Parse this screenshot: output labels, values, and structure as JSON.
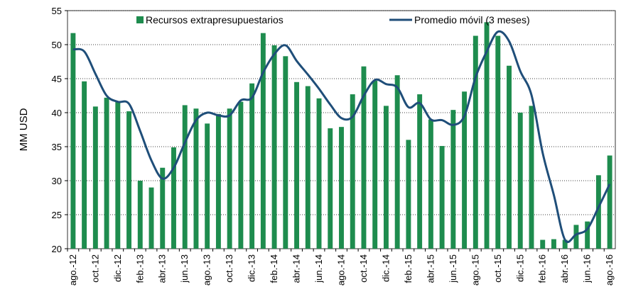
{
  "chart_data": {
    "type": "bar-line",
    "y_label": "MM USD",
    "categories": [
      "ago.-12",
      null,
      "oct.-12",
      null,
      "dic.-12",
      null,
      "feb.-13",
      null,
      "abr.-13",
      null,
      "jun.-13",
      null,
      "ago.-13",
      null,
      "oct.-13",
      null,
      "dic.-13",
      null,
      "feb.-14",
      null,
      "abr.-14",
      null,
      "jun.-14",
      null,
      "ago.-14",
      null,
      "oct.-14",
      null,
      "dic.-14",
      null,
      "feb.-15",
      null,
      "abr.-15",
      null,
      "jun.-15",
      null,
      "ago.-15",
      null,
      "oct.-15",
      null,
      "dic.-15",
      null,
      "feb.-16",
      null,
      "abr.-16",
      null,
      "jun.-16",
      null,
      "ago.-16"
    ],
    "series": [
      {
        "name": "Recursos extrapresupuestarios",
        "kind": "bar",
        "color": "#1e8c4e",
        "values": [
          51.7,
          44.6,
          40.9,
          42.2,
          41.6,
          40.2,
          30.0,
          29.0,
          31.9,
          34.9,
          41.1,
          40.6,
          38.4,
          39.8,
          40.6,
          41.6,
          44.3,
          51.7,
          49.9,
          48.3,
          44.5,
          43.9,
          42.1,
          37.7,
          37.9,
          42.7,
          46.8,
          44.7,
          41.0,
          45.5,
          36.0,
          42.7,
          39.0,
          35.1,
          40.4,
          43.1,
          51.3,
          53.3,
          51.3,
          46.9,
          40.0,
          41.0,
          21.3,
          21.4,
          21.3,
          23.5,
          24.0,
          30.8,
          33.7
        ]
      },
      {
        "name": "Promedio móvil (3 meses)",
        "kind": "line",
        "color": "#1f4e79",
        "values": [
          49.3,
          49.0,
          45.7,
          42.5,
          41.6,
          41.3,
          37.3,
          33.0,
          30.3,
          31.9,
          35.6,
          38.9,
          40.0,
          39.6,
          39.6,
          41.8,
          42.2,
          45.9,
          48.6,
          49.9,
          47.6,
          45.6,
          43.5,
          41.2,
          39.2,
          39.4,
          42.5,
          44.8,
          44.2,
          43.7,
          40.8,
          41.4,
          39.0,
          38.9,
          38.2,
          39.5,
          45.2,
          49.0,
          51.9,
          50.5,
          46.1,
          42.6,
          34.1,
          27.9,
          21.3,
          22.1,
          22.9,
          26.1,
          29.5
        ]
      }
    ],
    "ylim": [
      20,
      55
    ],
    "yticks": [
      20,
      25,
      30,
      35,
      40,
      45,
      50,
      55
    ],
    "grid": true,
    "legend": "top"
  }
}
